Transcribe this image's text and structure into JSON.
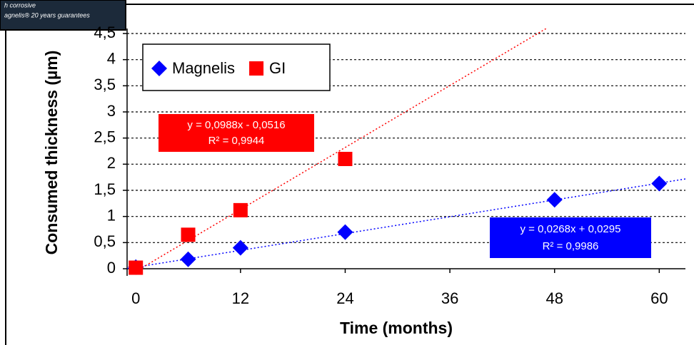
{
  "chart_data": {
    "type": "scatter",
    "x_label": "Time (months)",
    "y_label": "Consumed thickness (µm)",
    "xlim": [
      -1,
      63
    ],
    "xticks": [
      0,
      12,
      24,
      36,
      48,
      60
    ],
    "ylim": [
      0,
      4.5
    ],
    "yticks": [
      0,
      {
        "value": 0.5,
        "label": "0,5"
      },
      1,
      {
        "value": 1.5,
        "label": "1,5"
      },
      2,
      {
        "value": 2.5,
        "label": "2,5"
      },
      3,
      {
        "value": 3.5,
        "label": "3,5"
      },
      4,
      {
        "value": 4.5,
        "label": "4,5"
      }
    ],
    "grid": true,
    "legend": "top-left",
    "series": [
      {
        "name": "Magnelis",
        "color": "#0000ff",
        "marker": "diamond",
        "x": [
          0,
          6,
          12,
          24,
          48,
          60
        ],
        "values": [
          0.03,
          0.18,
          0.4,
          0.7,
          1.32,
          1.63
        ],
        "trendline": {
          "slope": 0.0268,
          "intercept": 0.0295,
          "equation": "y = 0,0268x + 0,0295",
          "r2": "R² = 0,9986"
        }
      },
      {
        "name": "GI",
        "color": "#ff0000",
        "marker": "square",
        "x": [
          0,
          6,
          12,
          24
        ],
        "values": [
          0.02,
          0.65,
          1.12,
          2.1
        ],
        "trendline": {
          "slope": 0.0988,
          "intercept": -0.0516,
          "equation": "y = 0,0988x - 0,0516",
          "r2": "R² = 0,9944"
        }
      }
    ]
  },
  "inset": {
    "lines": [
      "h corrosive",
      "agnelis® 20 years guarantees"
    ]
  }
}
